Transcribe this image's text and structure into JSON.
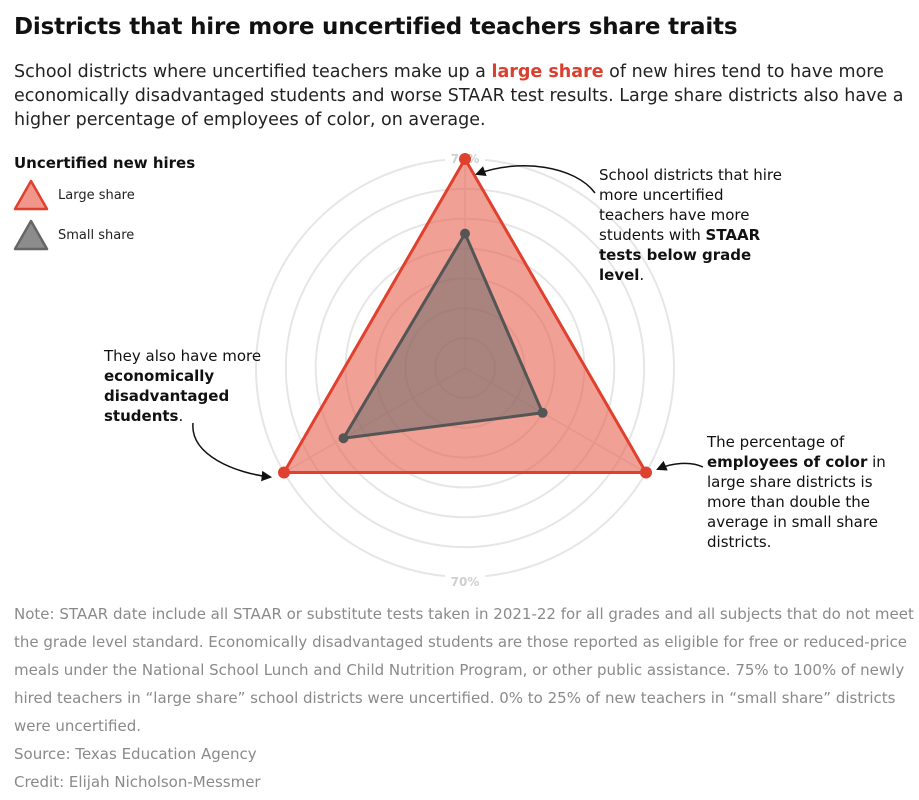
{
  "title": "Districts that hire more uncertified teachers share traits",
  "subtitle": {
    "before": "School districts where uncertified teachers make up a ",
    "highlight": "large share",
    "after": " of new hires tend to have more economically disadvantaged students and worse STAAR test results. Large share districts also have a higher percentage of employees of color, on average."
  },
  "legend": {
    "title": "Uncertified new hires",
    "items": [
      {
        "label": "Large share",
        "fill": "#f0968a",
        "stroke": "#e0412f"
      },
      {
        "label": "Small share",
        "fill": "#8c8c8c",
        "stroke": "#666666"
      }
    ]
  },
  "chart_data": {
    "type": "radar",
    "axes": [
      "STAAR tests below grade level",
      "Employees of color",
      "Economically disadvantaged students"
    ],
    "rmax": 70,
    "gridlines": 7,
    "grid_labels": [
      "70%",
      "70%"
    ],
    "series": [
      {
        "name": "Large share",
        "values": [
          70,
          70,
          70
        ],
        "fill": "#e8604f",
        "stroke": "#e0412f"
      },
      {
        "name": "Small share",
        "values": [
          45,
          30,
          47
        ],
        "fill": "#6e6e6e",
        "stroke": "#555555"
      }
    ]
  },
  "annotations": {
    "top": {
      "before": "School districts that hire more uncertified teachers have more students with ",
      "bold": "STAAR tests below grade level",
      "after": "."
    },
    "left": {
      "before": "They also have more ",
      "bold": "economically disadvantaged students",
      "after": "."
    },
    "right": {
      "before": "The percentage of ",
      "bold": "employees of color",
      "after": " in large share districts is more than double the average in small share districts."
    }
  },
  "note": {
    "text": "Note: STAAR date include all STAAR or substitute tests taken in 2021-22 for all grades and all subjects that do not meet the grade level standard. Economically disadvantaged students are those reported as eligible for free or reduced-price meals under the National School Lunch and Child Nutrition Program, or other public assistance. 75% to 100% of newly hired teachers in “large share” school districts were uncertified. 0% to 25% of new teachers in “small share” districts were uncertified.",
    "source": "Source: Texas Education Agency",
    "credit": "Credit: Elijah Nicholson-Messmer"
  }
}
